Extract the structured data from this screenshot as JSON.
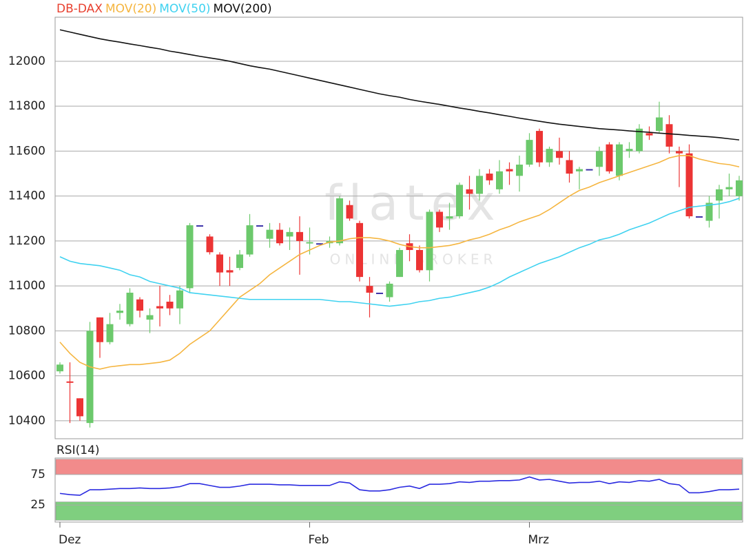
{
  "chart_data": [
    {
      "type": "candlestick",
      "name": "DB-DAX",
      "name_color": "#e8402f",
      "watermark": "flatex",
      "watermark_sub": "ONLINE BROKER",
      "categories": [
        "Dez",
        null,
        null,
        null,
        null,
        null,
        null,
        null,
        null,
        null,
        null,
        null,
        null,
        null,
        null,
        null,
        null,
        null,
        null,
        null,
        null,
        null,
        null,
        null,
        null,
        "Feb",
        null,
        null,
        null,
        null,
        null,
        null,
        null,
        null,
        null,
        null,
        null,
        null,
        null,
        null,
        null,
        null,
        null,
        null,
        null,
        null,
        null,
        "Mrz",
        null,
        null,
        null,
        null,
        null,
        null,
        null,
        null,
        null,
        null,
        null,
        null,
        null,
        null,
        null,
        null,
        null,
        null,
        null,
        null,
        null
      ],
      "open": [
        10620,
        10575,
        10500,
        10390,
        10860,
        10750,
        10880,
        10830,
        10940,
        10850,
        10910,
        10930,
        10900,
        10990,
        11270,
        11220,
        11140,
        11070,
        11080,
        11140,
        11270,
        11210,
        11250,
        11220,
        11240,
        11190,
        11190,
        11190,
        11190,
        11360,
        11280,
        11000,
        10970,
        10950,
        11040,
        11190,
        11160,
        11070,
        11330,
        11300,
        11310,
        11430,
        11410,
        11500,
        11430,
        11520,
        11490,
        11540,
        11690,
        11550,
        11600,
        11560,
        11510,
        11520,
        11530,
        11630,
        11490,
        11600,
        11600,
        11680,
        11690,
        11720,
        11600,
        11590,
        11310,
        11290,
        11380,
        11430,
        11400
      ],
      "high": [
        10660,
        10660,
        10500,
        10840,
        10860,
        10880,
        10920,
        10990,
        10950,
        10900,
        11000,
        10960,
        11000,
        11280,
        11270,
        11230,
        11150,
        11130,
        11160,
        11320,
        11270,
        11280,
        11280,
        11260,
        11310,
        11260,
        11190,
        11220,
        11400,
        11380,
        11290,
        11040,
        10970,
        11020,
        11170,
        11230,
        11180,
        11340,
        11340,
        11370,
        11460,
        11490,
        11520,
        11520,
        11560,
        11550,
        11580,
        11680,
        11700,
        11620,
        11660,
        11600,
        11530,
        11520,
        11620,
        11640,
        11640,
        11640,
        11720,
        11710,
        11820,
        11760,
        11620,
        11630,
        11310,
        11400,
        11450,
        11500,
        11490
      ],
      "low": [
        10610,
        10390,
        10400,
        10370,
        10680,
        10740,
        10850,
        10820,
        10860,
        10790,
        10820,
        10870,
        10830,
        10970,
        11270,
        11140,
        11000,
        11000,
        11070,
        11130,
        11270,
        11170,
        11180,
        11160,
        11050,
        11140,
        11190,
        11170,
        11180,
        11290,
        11020,
        10860,
        10970,
        10930,
        11040,
        11110,
        11060,
        11020,
        11240,
        11250,
        11300,
        11340,
        11380,
        11450,
        11410,
        11450,
        11420,
        11530,
        11530,
        11530,
        11540,
        11460,
        11430,
        11520,
        11490,
        11500,
        11470,
        11570,
        11590,
        11650,
        11680,
        11590,
        11440,
        11300,
        11310,
        11260,
        11300,
        11400,
        11380
      ],
      "close": [
        10650,
        10570,
        10420,
        10800,
        10750,
        10830,
        10890,
        10970,
        10890,
        10870,
        10900,
        10900,
        10980,
        11270,
        11270,
        11150,
        11060,
        11060,
        11140,
        11270,
        11270,
        11250,
        11190,
        11240,
        11200,
        11195,
        11190,
        11200,
        11390,
        11300,
        11040,
        10970,
        10970,
        11010,
        11160,
        11160,
        11070,
        11330,
        11260,
        11310,
        11450,
        11410,
        11490,
        11470,
        11510,
        11510,
        11540,
        11650,
        11550,
        11610,
        11570,
        11500,
        11520,
        11520,
        11600,
        11510,
        11630,
        11610,
        11700,
        11670,
        11750,
        11620,
        11590,
        11310,
        11310,
        11370,
        11430,
        11440,
        11470
      ],
      "up_color": "#6cc96c",
      "down_color": "#ec3434",
      "flat_color": "#3a30a8",
      "series": [
        {
          "name": "MOV(20)",
          "color": "#f5b53f",
          "values": [
            10750,
            10700,
            10660,
            10640,
            10630,
            10640,
            10645,
            10650,
            10650,
            10655,
            10660,
            10670,
            10700,
            10740,
            10770,
            10800,
            10850,
            10900,
            10950,
            10980,
            11010,
            11050,
            11080,
            11110,
            11140,
            11160,
            11180,
            11195,
            11200,
            11210,
            11215,
            11215,
            11210,
            11200,
            11185,
            11175,
            11170,
            11170,
            11175,
            11180,
            11190,
            11205,
            11215,
            11230,
            11250,
            11265,
            11285,
            11300,
            11315,
            11340,
            11370,
            11400,
            11425,
            11440,
            11460,
            11475,
            11490,
            11505,
            11520,
            11535,
            11550,
            11570,
            11580,
            11580,
            11565,
            11555,
            11545,
            11540,
            11530
          ]
        },
        {
          "name": "MOV(50)",
          "color": "#3fd2f0",
          "values": [
            11130,
            11110,
            11100,
            11095,
            11090,
            11080,
            11070,
            11050,
            11040,
            11020,
            11010,
            11000,
            10990,
            10970,
            10965,
            10960,
            10955,
            10950,
            10945,
            10940,
            10940,
            10940,
            10940,
            10940,
            10940,
            10940,
            10940,
            10935,
            10930,
            10930,
            10925,
            10920,
            10915,
            10910,
            10915,
            10920,
            10930,
            10935,
            10945,
            10950,
            10960,
            10970,
            10980,
            10995,
            11015,
            11040,
            11060,
            11080,
            11100,
            11115,
            11130,
            11150,
            11170,
            11185,
            11205,
            11215,
            11230,
            11250,
            11265,
            11280,
            11300,
            11320,
            11335,
            11350,
            11355,
            11360,
            11365,
            11375,
            11390
          ]
        },
        {
          "name": "MOV(200)",
          "color": "#111111",
          "values": [
            12140,
            12130,
            12120,
            12110,
            12100,
            12092,
            12085,
            12077,
            12070,
            12062,
            12055,
            12045,
            12038,
            12030,
            12022,
            12015,
            12008,
            12000,
            11990,
            11980,
            11972,
            11965,
            11955,
            11945,
            11935,
            11925,
            11915,
            11905,
            11895,
            11885,
            11875,
            11865,
            11855,
            11847,
            11840,
            11830,
            11822,
            11815,
            11808,
            11800,
            11792,
            11785,
            11777,
            11770,
            11762,
            11755,
            11747,
            11740,
            11733,
            11726,
            11720,
            11715,
            11710,
            11705,
            11700,
            11697,
            11694,
            11690,
            11687,
            11684,
            11680,
            11677,
            11674,
            11670,
            11667,
            11664,
            11660,
            11655,
            11650
          ]
        }
      ],
      "ylim": [
        10320,
        12196
      ],
      "yticks": [
        10400,
        10600,
        10800,
        11000,
        11200,
        11400,
        11600,
        11800,
        12000
      ],
      "grid": true
    },
    {
      "type": "line",
      "series": [
        {
          "name": "RSI(14)",
          "color": "#2a2ae0",
          "values": [
            44,
            42,
            41,
            50,
            50,
            51,
            52,
            52,
            53,
            52,
            52,
            53,
            55,
            60,
            60,
            57,
            54,
            54,
            56,
            59,
            59,
            59,
            58,
            58,
            57,
            57,
            57,
            57,
            63,
            61,
            50,
            48,
            48,
            50,
            54,
            56,
            52,
            59,
            59,
            60,
            63,
            62,
            64,
            64,
            65,
            65,
            66,
            71,
            66,
            67,
            64,
            61,
            62,
            62,
            64,
            60,
            63,
            62,
            65,
            64,
            67,
            60,
            58,
            45,
            45,
            47,
            50,
            50,
            51
          ]
        }
      ],
      "overbought_zone": [
        75,
        100
      ],
      "overbought_color": "#f28b8b",
      "oversold_zone": [
        0,
        30
      ],
      "oversold_color": "#7fcf7f",
      "ylim": [
        -3,
        102
      ],
      "yticks": [
        25,
        75
      ],
      "grid": true
    }
  ]
}
